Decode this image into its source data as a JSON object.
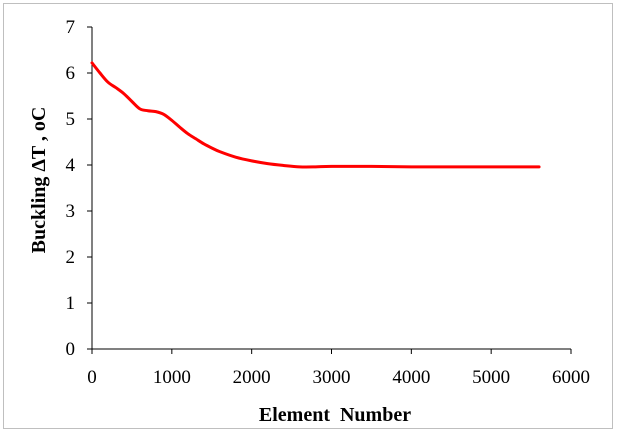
{
  "chart_data": {
    "type": "line",
    "xlabel": "Element  Number",
    "ylabel": "Buckling ΔT , oC",
    "xlim": [
      0,
      6000
    ],
    "ylim": [
      0,
      7
    ],
    "xticks": [
      0,
      1000,
      2000,
      3000,
      4000,
      5000,
      6000
    ],
    "yticks": [
      0,
      1,
      2,
      3,
      4,
      5,
      6,
      7
    ],
    "grid": false,
    "legend": "none",
    "series": [
      {
        "color": "#ff0000",
        "x": [
          0,
          100,
          200,
          300,
          400,
          500,
          600,
          700,
          800,
          900,
          1000,
          1100,
          1200,
          1300,
          1400,
          1500,
          1600,
          1800,
          2000,
          2200,
          2400,
          2600,
          2800,
          3000,
          3500,
          4000,
          4500,
          5000,
          5600
        ],
        "y": [
          6.22,
          6.0,
          5.8,
          5.68,
          5.55,
          5.38,
          5.22,
          5.18,
          5.16,
          5.1,
          4.97,
          4.82,
          4.68,
          4.57,
          4.46,
          4.37,
          4.29,
          4.17,
          4.09,
          4.03,
          3.99,
          3.96,
          3.96,
          3.97,
          3.97,
          3.96,
          3.96,
          3.96,
          3.96
        ]
      }
    ]
  }
}
